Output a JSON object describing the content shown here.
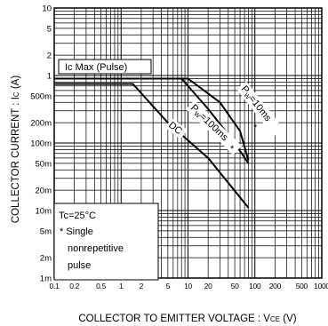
{
  "chart_data": {
    "type": "line",
    "xscale": "log",
    "yscale": "log",
    "xlim": [
      0.1,
      1000
    ],
    "ylim": [
      1,
      10
    ],
    "xlabel_main": "COLLECTOR  TO  EMITTER  VOLTAGE : V",
    "xlabel_sub": "CE",
    "xlabel_unit": " (V)",
    "ylabel_main": "COLLECTOR  CURRENT : I",
    "ylabel_sub": "C",
    "ylabel_unit": " (A)",
    "x_ticks": [
      {
        "v": 0.1,
        "label": "0.1"
      },
      {
        "v": 0.2,
        "label": "0.2"
      },
      {
        "v": 0.5,
        "label": "0.5"
      },
      {
        "v": 1,
        "label": "1"
      },
      {
        "v": 2,
        "label": "2"
      },
      {
        "v": 5,
        "label": "5"
      },
      {
        "v": 10,
        "label": "10"
      },
      {
        "v": 20,
        "label": "20"
      },
      {
        "v": 50,
        "label": "50"
      },
      {
        "v": 100,
        "label": "100"
      },
      {
        "v": 200,
        "label": "200"
      },
      {
        "v": 500,
        "label": "500"
      },
      {
        "v": 1000,
        "label": "1000"
      }
    ],
    "y_ticks": [
      {
        "v": 10,
        "label": "10"
      },
      {
        "v": 5,
        "label": "5"
      },
      {
        "v": 2,
        "label": "2"
      },
      {
        "v": 1,
        "label": "1"
      },
      {
        "v": 0.5,
        "label": "500m"
      },
      {
        "v": 0.2,
        "label": "200m"
      },
      {
        "v": 0.1,
        "label": "100m"
      },
      {
        "v": 0.05,
        "label": "50m"
      },
      {
        "v": 0.02,
        "label": "20m"
      },
      {
        "v": 0.01,
        "label": "10m"
      },
      {
        "v": 0.005,
        "label": "5m"
      },
      {
        "v": 0.002,
        "label": "2m"
      },
      {
        "v": 0.001,
        "label": "1m"
      }
    ],
    "y_range": [
      0.001,
      10
    ],
    "series": [
      {
        "label": "Pw=10ms",
        "points": [
          [
            0.1,
            0.9
          ],
          [
            10,
            0.9
          ],
          [
            30,
            0.4
          ],
          [
            60,
            0.15
          ],
          [
            80,
            0.055
          ]
        ]
      },
      {
        "label": "Pw=100ms",
        "points": [
          [
            0.1,
            0.9
          ],
          [
            8,
            0.9
          ],
          [
            20,
            0.32
          ],
          [
            50,
            0.1
          ],
          [
            80,
            0.05
          ]
        ]
      },
      {
        "label": "DC",
        "points": [
          [
            0.1,
            0.75
          ],
          [
            1.5,
            0.75
          ],
          [
            5,
            0.2
          ],
          [
            20,
            0.06
          ],
          [
            80,
            0.011
          ]
        ]
      }
    ],
    "annotations": {
      "icmax": "Ic Max (Pulse)",
      "pw10_a": "P",
      "pw10_b": "W",
      "pw10_c": "=10ms",
      "pw100_a": "P",
      "pw100_b": "W",
      "pw100_c": "=100ms",
      "star": "*",
      "dc": "DC"
    },
    "legend": {
      "tc": "Tc=25°C",
      "single": "* Single",
      "nonrep": "nonrepetitive",
      "pulse": "pulse"
    }
  }
}
